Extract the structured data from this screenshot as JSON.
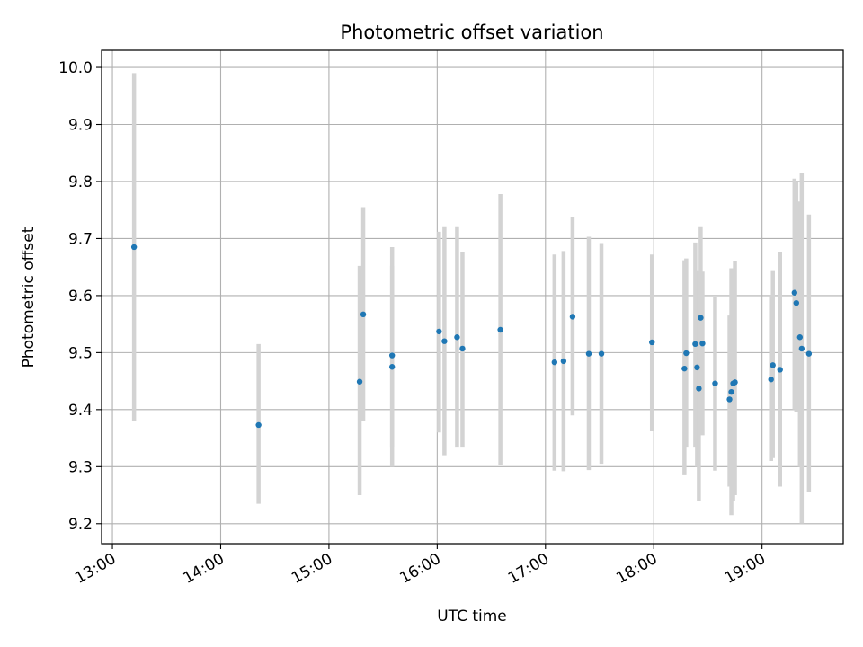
{
  "chart_data": {
    "type": "scatter",
    "title": "Photometric offset variation",
    "xlabel": "UTC time",
    "ylabel": "Photometric offset",
    "xlim": [
      "12:54",
      "19:45"
    ],
    "ylim": [
      9.165,
      10.03
    ],
    "xticks": [
      "13:00",
      "14:00",
      "15:00",
      "16:00",
      "17:00",
      "18:00",
      "19:00"
    ],
    "yticks": [
      "9.2",
      "9.3",
      "9.4",
      "9.5",
      "9.6",
      "9.7",
      "9.8",
      "9.9",
      "10.0"
    ],
    "grid": true,
    "colors": {
      "points": "#1f77b4",
      "errorbars": "#d3d3d3",
      "grid": "#b0b0b0"
    },
    "series": [
      {
        "points": [
          {
            "x": "13:12",
            "y": 9.685,
            "ylow": 9.38,
            "yhigh": 9.99
          },
          {
            "x": "14:21",
            "y": 9.373,
            "ylow": 9.235,
            "yhigh": 9.515
          },
          {
            "x": "15:17",
            "y": 9.449,
            "ylow": 9.25,
            "yhigh": 9.652
          },
          {
            "x": "15:19",
            "y": 9.567,
            "ylow": 9.38,
            "yhigh": 9.755
          },
          {
            "x": "15:35",
            "y": 9.495,
            "ylow": 9.335,
            "yhigh": 9.685
          },
          {
            "x": "15:35",
            "y": 9.475,
            "ylow": 9.3,
            "yhigh": 9.652
          },
          {
            "x": "16:01",
            "y": 9.537,
            "ylow": 9.36,
            "yhigh": 9.712
          },
          {
            "x": "16:04",
            "y": 9.52,
            "ylow": 9.32,
            "yhigh": 9.72
          },
          {
            "x": "16:11",
            "y": 9.527,
            "ylow": 9.335,
            "yhigh": 9.72
          },
          {
            "x": "16:14",
            "y": 9.507,
            "ylow": 9.335,
            "yhigh": 9.677
          },
          {
            "x": "16:35",
            "y": 9.54,
            "ylow": 9.302,
            "yhigh": 9.778
          },
          {
            "x": "17:05",
            "y": 9.483,
            "ylow": 9.293,
            "yhigh": 9.672
          },
          {
            "x": "17:10",
            "y": 9.485,
            "ylow": 9.292,
            "yhigh": 9.678
          },
          {
            "x": "17:15",
            "y": 9.563,
            "ylow": 9.39,
            "yhigh": 9.737
          },
          {
            "x": "17:24",
            "y": 9.498,
            "ylow": 9.294,
            "yhigh": 9.703
          },
          {
            "x": "17:31",
            "y": 9.498,
            "ylow": 9.305,
            "yhigh": 9.692
          },
          {
            "x": "17:59",
            "y": 9.518,
            "ylow": 9.362,
            "yhigh": 9.672
          },
          {
            "x": "18:17",
            "y": 9.472,
            "ylow": 9.285,
            "yhigh": 9.662
          },
          {
            "x": "18:18",
            "y": 9.499,
            "ylow": 9.335,
            "yhigh": 9.665
          },
          {
            "x": "18:23",
            "y": 9.515,
            "ylow": 9.335,
            "yhigh": 9.693
          },
          {
            "x": "18:24",
            "y": 9.474,
            "ylow": 9.3,
            "yhigh": 9.642
          },
          {
            "x": "18:25",
            "y": 9.437,
            "ylow": 9.24,
            "yhigh": 9.643
          },
          {
            "x": "18:26",
            "y": 9.561,
            "ylow": 9.4,
            "yhigh": 9.72
          },
          {
            "x": "18:27",
            "y": 9.516,
            "ylow": 9.355,
            "yhigh": 9.642
          },
          {
            "x": "18:34",
            "y": 9.446,
            "ylow": 9.293,
            "yhigh": 9.598
          },
          {
            "x": "18:42",
            "y": 9.418,
            "ylow": 9.265,
            "yhigh": 9.565
          },
          {
            "x": "18:43",
            "y": 9.431,
            "ylow": 9.215,
            "yhigh": 9.648
          },
          {
            "x": "18:44",
            "y": 9.446,
            "ylow": 9.24,
            "yhigh": 9.645
          },
          {
            "x": "18:45",
            "y": 9.448,
            "ylow": 9.25,
            "yhigh": 9.66
          },
          {
            "x": "19:05",
            "y": 9.453,
            "ylow": 9.31,
            "yhigh": 9.6
          },
          {
            "x": "19:06",
            "y": 9.478,
            "ylow": 9.315,
            "yhigh": 9.643
          },
          {
            "x": "19:10",
            "y": 9.47,
            "ylow": 9.265,
            "yhigh": 9.677
          },
          {
            "x": "19:18",
            "y": 9.605,
            "ylow": 9.4,
            "yhigh": 9.805
          },
          {
            "x": "19:19",
            "y": 9.587,
            "ylow": 9.395,
            "yhigh": 9.8
          },
          {
            "x": "19:21",
            "y": 9.527,
            "ylow": 9.3,
            "yhigh": 9.765
          },
          {
            "x": "19:22",
            "y": 9.507,
            "ylow": 9.2,
            "yhigh": 9.815
          },
          {
            "x": "19:26",
            "y": 9.498,
            "ylow": 9.255,
            "yhigh": 9.742
          }
        ]
      }
    ]
  }
}
